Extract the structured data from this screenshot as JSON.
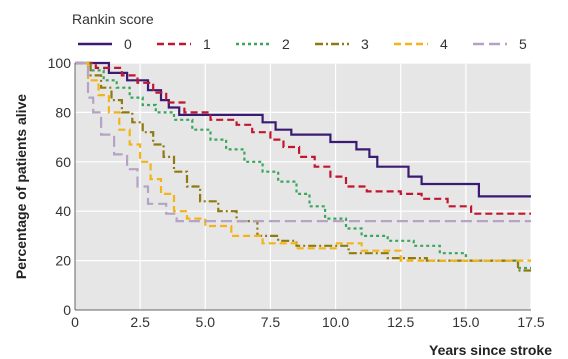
{
  "chart_data": {
    "type": "line",
    "step": true,
    "legend_title": "Rankin score",
    "legend_position": "top",
    "xlabel": "Years since stroke",
    "ylabel": "Percentage of patients alive",
    "xlim": [
      0,
      17.5
    ],
    "ylim": [
      0,
      100
    ],
    "xticks": [
      "0",
      "2.5",
      "5.0",
      "7.5",
      "10.0",
      "12.5",
      "15.0",
      "17.5"
    ],
    "xtick_values": [
      0,
      2.5,
      5,
      7.5,
      10,
      12.5,
      15,
      17.5
    ],
    "yticks": [
      "0",
      "20",
      "40",
      "60",
      "80",
      "100"
    ],
    "ytick_values": [
      0,
      20,
      40,
      60,
      80,
      100
    ],
    "grid": true,
    "plot_background": "#e6e6e6",
    "series": [
      {
        "name": "0",
        "color": "#3b1a73",
        "dash": "solid",
        "points": [
          [
            0,
            100
          ],
          [
            1.3,
            100
          ],
          [
            1.3,
            96
          ],
          [
            2.0,
            96
          ],
          [
            2.0,
            93
          ],
          [
            2.8,
            93
          ],
          [
            2.8,
            89
          ],
          [
            3.3,
            89
          ],
          [
            3.3,
            85
          ],
          [
            3.6,
            85
          ],
          [
            3.6,
            82
          ],
          [
            4.0,
            82
          ],
          [
            4.0,
            79
          ],
          [
            7.2,
            79
          ],
          [
            7.2,
            76
          ],
          [
            7.7,
            76
          ],
          [
            7.7,
            73
          ],
          [
            8.3,
            73
          ],
          [
            8.3,
            71
          ],
          [
            9.8,
            71
          ],
          [
            9.8,
            68
          ],
          [
            10.8,
            68
          ],
          [
            10.8,
            65
          ],
          [
            11.3,
            65
          ],
          [
            11.3,
            62
          ],
          [
            11.6,
            62
          ],
          [
            11.6,
            58
          ],
          [
            12.8,
            58
          ],
          [
            12.8,
            54
          ],
          [
            13.3,
            54
          ],
          [
            13.3,
            51
          ],
          [
            15.5,
            51
          ],
          [
            15.5,
            46
          ],
          [
            17.5,
            46
          ]
        ]
      },
      {
        "name": "1",
        "color": "#c0162e",
        "dash": "dashed",
        "points": [
          [
            0,
            100
          ],
          [
            0.8,
            100
          ],
          [
            0.8,
            98
          ],
          [
            1.8,
            98
          ],
          [
            1.8,
            95
          ],
          [
            2.4,
            95
          ],
          [
            2.4,
            92
          ],
          [
            3.0,
            92
          ],
          [
            3.0,
            88
          ],
          [
            3.5,
            88
          ],
          [
            3.5,
            84
          ],
          [
            4.2,
            84
          ],
          [
            4.2,
            80
          ],
          [
            5.2,
            80
          ],
          [
            5.2,
            77
          ],
          [
            6.2,
            77
          ],
          [
            6.2,
            75
          ],
          [
            6.8,
            75
          ],
          [
            6.8,
            72
          ],
          [
            7.5,
            72
          ],
          [
            7.5,
            69
          ],
          [
            8.0,
            69
          ],
          [
            8.0,
            66
          ],
          [
            8.6,
            66
          ],
          [
            8.6,
            62
          ],
          [
            9.2,
            62
          ],
          [
            9.2,
            58
          ],
          [
            9.8,
            58
          ],
          [
            9.8,
            54
          ],
          [
            10.4,
            54
          ],
          [
            10.4,
            50
          ],
          [
            11.2,
            50
          ],
          [
            11.2,
            48
          ],
          [
            12.5,
            48
          ],
          [
            12.5,
            47
          ],
          [
            13.3,
            47
          ],
          [
            13.3,
            45
          ],
          [
            14.3,
            45
          ],
          [
            14.3,
            42
          ],
          [
            15.2,
            42
          ],
          [
            15.2,
            39
          ],
          [
            17.5,
            39
          ]
        ]
      },
      {
        "name": "2",
        "color": "#3aa65c",
        "dash": "dotted",
        "points": [
          [
            0,
            100
          ],
          [
            0.6,
            100
          ],
          [
            0.6,
            97
          ],
          [
            1.1,
            97
          ],
          [
            1.1,
            93
          ],
          [
            1.6,
            93
          ],
          [
            1.6,
            90
          ],
          [
            2.1,
            90
          ],
          [
            2.1,
            86
          ],
          [
            2.6,
            86
          ],
          [
            2.6,
            83
          ],
          [
            3.1,
            83
          ],
          [
            3.1,
            80
          ],
          [
            3.8,
            80
          ],
          [
            3.8,
            77
          ],
          [
            4.5,
            77
          ],
          [
            4.5,
            73
          ],
          [
            5.2,
            73
          ],
          [
            5.2,
            69
          ],
          [
            5.8,
            69
          ],
          [
            5.8,
            65
          ],
          [
            6.5,
            65
          ],
          [
            6.5,
            60
          ],
          [
            7.2,
            60
          ],
          [
            7.2,
            56
          ],
          [
            7.8,
            56
          ],
          [
            7.8,
            52
          ],
          [
            8.5,
            52
          ],
          [
            8.5,
            47
          ],
          [
            9.0,
            47
          ],
          [
            9.0,
            42
          ],
          [
            9.6,
            42
          ],
          [
            9.6,
            37
          ],
          [
            10.4,
            37
          ],
          [
            10.4,
            33
          ],
          [
            11.0,
            33
          ],
          [
            11.0,
            30
          ],
          [
            12.0,
            30
          ],
          [
            12.0,
            28
          ],
          [
            13.0,
            28
          ],
          [
            13.0,
            26
          ],
          [
            14.0,
            26
          ],
          [
            14.0,
            23
          ],
          [
            15.0,
            23
          ],
          [
            15.0,
            20
          ],
          [
            17.0,
            20
          ],
          [
            17.0,
            17
          ],
          [
            17.5,
            17
          ]
        ]
      },
      {
        "name": "3",
        "color": "#8f7a12",
        "dash": "dashdot",
        "points": [
          [
            0,
            100
          ],
          [
            0.6,
            100
          ],
          [
            0.6,
            95
          ],
          [
            1.0,
            95
          ],
          [
            1.0,
            90
          ],
          [
            1.4,
            90
          ],
          [
            1.4,
            85
          ],
          [
            1.8,
            85
          ],
          [
            1.8,
            80
          ],
          [
            2.2,
            80
          ],
          [
            2.2,
            76
          ],
          [
            2.6,
            76
          ],
          [
            2.6,
            72
          ],
          [
            3.0,
            72
          ],
          [
            3.0,
            67
          ],
          [
            3.4,
            67
          ],
          [
            3.4,
            62
          ],
          [
            3.8,
            62
          ],
          [
            3.8,
            56
          ],
          [
            4.3,
            56
          ],
          [
            4.3,
            50
          ],
          [
            4.8,
            50
          ],
          [
            4.8,
            44
          ],
          [
            5.5,
            44
          ],
          [
            5.5,
            40
          ],
          [
            6.2,
            40
          ],
          [
            6.2,
            36
          ],
          [
            7.0,
            36
          ],
          [
            7.0,
            30
          ],
          [
            7.8,
            30
          ],
          [
            7.8,
            28
          ],
          [
            8.5,
            28
          ],
          [
            8.5,
            26
          ],
          [
            10.5,
            26
          ],
          [
            10.5,
            23
          ],
          [
            12.0,
            23
          ],
          [
            12.0,
            21
          ],
          [
            13.5,
            21
          ],
          [
            13.5,
            20
          ],
          [
            17.0,
            20
          ],
          [
            17.0,
            16
          ],
          [
            17.5,
            16
          ]
        ]
      },
      {
        "name": "4",
        "color": "#f2b418",
        "dash": "dashed",
        "points": [
          [
            0,
            100
          ],
          [
            0.5,
            100
          ],
          [
            0.5,
            93
          ],
          [
            0.9,
            93
          ],
          [
            0.9,
            87
          ],
          [
            1.3,
            87
          ],
          [
            1.3,
            80
          ],
          [
            1.7,
            80
          ],
          [
            1.7,
            73
          ],
          [
            2.1,
            73
          ],
          [
            2.1,
            67
          ],
          [
            2.5,
            67
          ],
          [
            2.5,
            60
          ],
          [
            2.9,
            60
          ],
          [
            2.9,
            53
          ],
          [
            3.3,
            53
          ],
          [
            3.3,
            47
          ],
          [
            3.8,
            47
          ],
          [
            3.8,
            40
          ],
          [
            4.3,
            40
          ],
          [
            4.3,
            37
          ],
          [
            5.0,
            37
          ],
          [
            5.0,
            34
          ],
          [
            6.0,
            34
          ],
          [
            6.0,
            30
          ],
          [
            7.2,
            30
          ],
          [
            7.2,
            27
          ],
          [
            8.5,
            27
          ],
          [
            8.5,
            25
          ],
          [
            10.0,
            25
          ],
          [
            10.0,
            27
          ],
          [
            11.0,
            27
          ],
          [
            11.0,
            24
          ],
          [
            12.5,
            24
          ],
          [
            12.5,
            20
          ],
          [
            17.5,
            20
          ]
        ]
      },
      {
        "name": "5",
        "color": "#b5a2c4",
        "dash": "longdash",
        "points": [
          [
            0,
            100
          ],
          [
            0.5,
            100
          ],
          [
            0.5,
            86
          ],
          [
            0.7,
            86
          ],
          [
            0.7,
            80
          ],
          [
            1.0,
            80
          ],
          [
            1.0,
            71
          ],
          [
            1.5,
            71
          ],
          [
            1.5,
            63
          ],
          [
            2.0,
            63
          ],
          [
            2.0,
            57
          ],
          [
            2.4,
            57
          ],
          [
            2.4,
            50
          ],
          [
            2.8,
            50
          ],
          [
            2.8,
            43
          ],
          [
            3.5,
            43
          ],
          [
            3.5,
            39
          ],
          [
            3.9,
            39
          ],
          [
            3.9,
            36
          ],
          [
            17.5,
            36
          ]
        ]
      }
    ]
  }
}
